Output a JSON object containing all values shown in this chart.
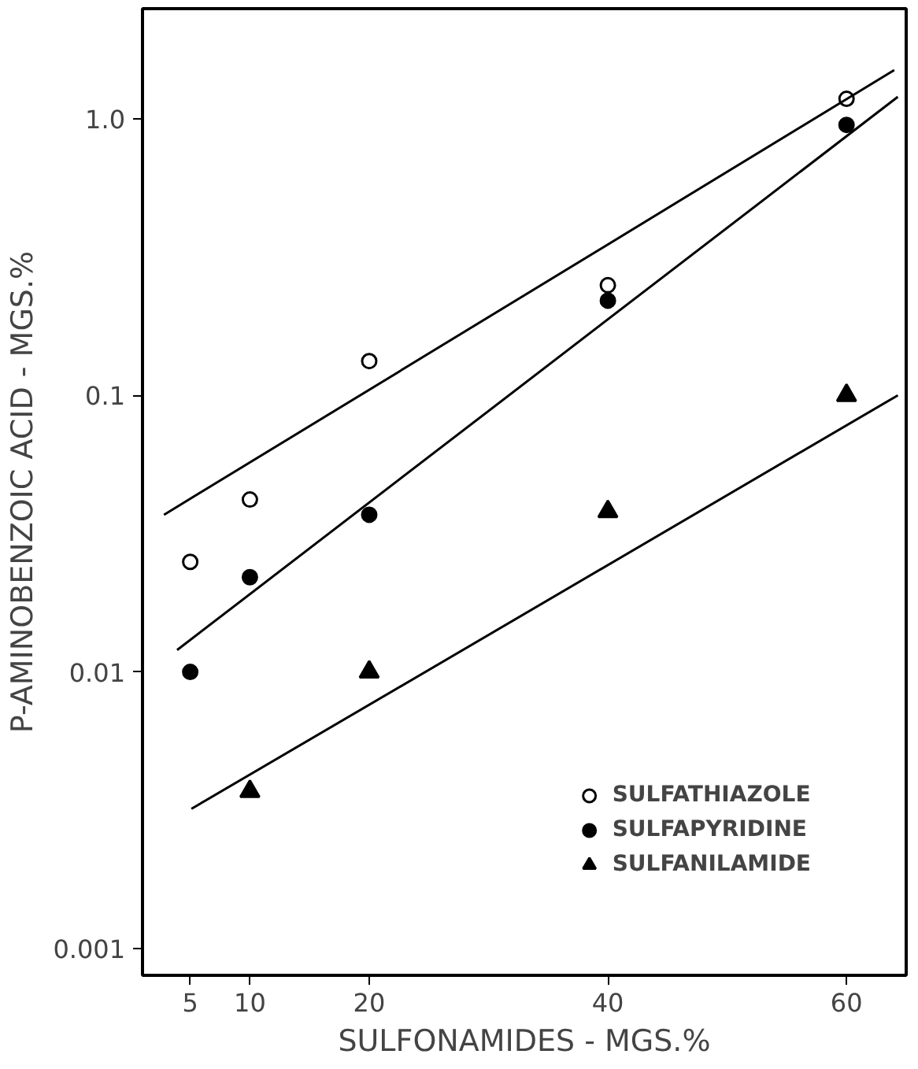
{
  "chart_data": {
    "type": "scatter",
    "xlabel": "SULFONAMIDES - MGS.%",
    "ylabel": "P-AMINOBENZOIC ACID - MGS.%",
    "log": "y",
    "xlim": [
      1,
      65
    ],
    "ylim": [
      0.0008,
      2.5
    ],
    "xticks": [
      5,
      10,
      20,
      40,
      60
    ],
    "yticks": [
      0.001,
      0.01,
      0.1,
      {
        "value": 1,
        "label": "1.0"
      }
    ],
    "grid": false,
    "legend": "bottom right",
    "series": [
      {
        "name": "SULFATHIAZOLE",
        "color": "#000000",
        "marker": "circle_open",
        "x": [
          5,
          10,
          20,
          40,
          60
        ],
        "values": [
          0.025,
          0.042,
          0.133,
          0.25,
          1.18
        ]
      },
      {
        "name": "SULFAPYRIDINE",
        "color": "#000000",
        "marker": "circle",
        "x": [
          5,
          10,
          20,
          40,
          60
        ],
        "values": [
          0.01,
          0.022,
          0.037,
          0.22,
          0.95
        ]
      },
      {
        "name": "SULFANILAMIDE",
        "color": "#000000",
        "marker": "triangle",
        "x": [
          10,
          20,
          40,
          60
        ],
        "values": [
          0.0037,
          0.01,
          0.038,
          0.1
        ]
      },
      {
        "type": "line",
        "color": "#000000",
        "x": [
          2.8,
          64
        ],
        "values": [
          0.037,
          1.5
        ]
      },
      {
        "type": "line",
        "color": "#000000",
        "x": [
          3.9,
          64.3
        ],
        "values": [
          0.012,
          1.2
        ]
      },
      {
        "type": "line",
        "color": "#000000",
        "x": [
          5.1,
          64.3
        ],
        "values": [
          0.0032,
          0.1
        ]
      }
    ]
  }
}
